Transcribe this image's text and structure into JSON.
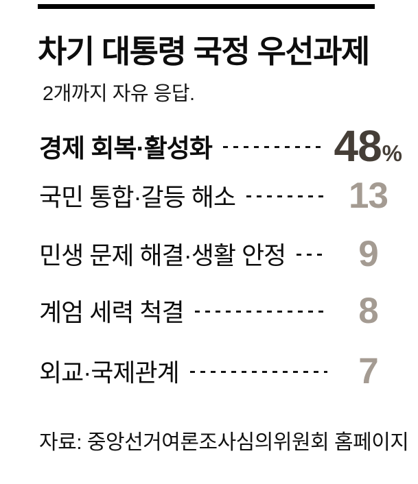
{
  "colors": {
    "background": "#ffffff",
    "text": "#0d0d0d",
    "top_rule": "#000000",
    "leader_dash": "#141414",
    "value_primary": "#453e37",
    "value_secondary": "#a49b92"
  },
  "header": {
    "title": "차기 대통령 국정 우선과제",
    "subtitle": "2개까지 자유 응답."
  },
  "rows": [
    {
      "label": "경제 회복·활성화",
      "value": "48",
      "suffix": "%"
    },
    {
      "label": "국민 통합·갈등 해소",
      "value": "13",
      "suffix": ""
    },
    {
      "label": "민생 문제 해결·생활 안정",
      "value": "9",
      "suffix": ""
    },
    {
      "label": "계엄 세력 척결",
      "value": "8",
      "suffix": ""
    },
    {
      "label": "외교·국제관계",
      "value": "7",
      "suffix": ""
    }
  ],
  "source": {
    "label": "자료: 중앙선거여론조사심의위원회 홈페이지"
  },
  "chart_data": {
    "type": "bar",
    "title": "차기 대통령 국정 우선과제",
    "subtitle": "2개까지 자유 응답.",
    "categories": [
      "경제 회복·활성화",
      "국민 통합·갈등 해소",
      "민생 문제 해결·생활 안정",
      "계엄 세력 척결",
      "외교·국제관계"
    ],
    "values": [
      48,
      13,
      9,
      8,
      7
    ],
    "unit": "%",
    "value_labels": [
      "48%",
      "13",
      "9",
      "8",
      "7"
    ],
    "source": "자료: 중앙선거여론조사심의위원회 홈페이지",
    "layout": "horizontal list with dotted leaders, values right-aligned"
  }
}
